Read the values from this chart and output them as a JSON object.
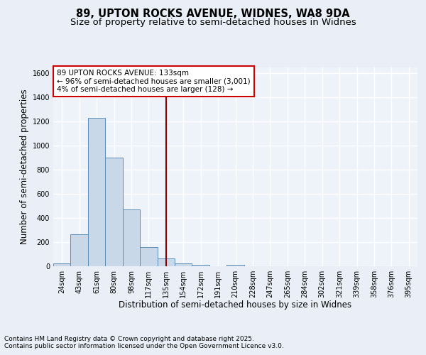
{
  "title_line1": "89, UPTON ROCKS AVENUE, WIDNES, WA8 9DA",
  "title_line2": "Size of property relative to semi-detached houses in Widnes",
  "xlabel": "Distribution of semi-detached houses by size in Widnes",
  "ylabel": "Number of semi-detached properties",
  "categories": [
    "24sqm",
    "43sqm",
    "61sqm",
    "80sqm",
    "98sqm",
    "117sqm",
    "135sqm",
    "154sqm",
    "172sqm",
    "191sqm",
    "210sqm",
    "228sqm",
    "247sqm",
    "265sqm",
    "284sqm",
    "302sqm",
    "321sqm",
    "339sqm",
    "358sqm",
    "376sqm",
    "395sqm"
  ],
  "values": [
    25,
    265,
    1230,
    900,
    470,
    160,
    65,
    25,
    10,
    0,
    10,
    0,
    0,
    0,
    0,
    0,
    0,
    0,
    0,
    0,
    0
  ],
  "bar_color": "#c8d8e8",
  "bar_edge_color": "#5b8db8",
  "vline_x": 6,
  "vline_color": "#8b0000",
  "annotation_text": "89 UPTON ROCKS AVENUE: 133sqm\n← 96% of semi-detached houses are smaller (3,001)\n4% of semi-detached houses are larger (128) →",
  "annotation_box_color": "#ffffff",
  "annotation_box_edge": "#cc0000",
  "ylim": [
    0,
    1650
  ],
  "yticks": [
    0,
    200,
    400,
    600,
    800,
    1000,
    1200,
    1400,
    1600
  ],
  "footer_line1": "Contains HM Land Registry data © Crown copyright and database right 2025.",
  "footer_line2": "Contains public sector information licensed under the Open Government Licence v3.0.",
  "background_color": "#eaeff7",
  "plot_bg_color": "#eef2f9",
  "grid_color": "#ffffff",
  "title_fontsize": 10.5,
  "subtitle_fontsize": 9.5,
  "label_fontsize": 8.5,
  "tick_fontsize": 7,
  "annot_fontsize": 7.5,
  "footer_fontsize": 6.5
}
